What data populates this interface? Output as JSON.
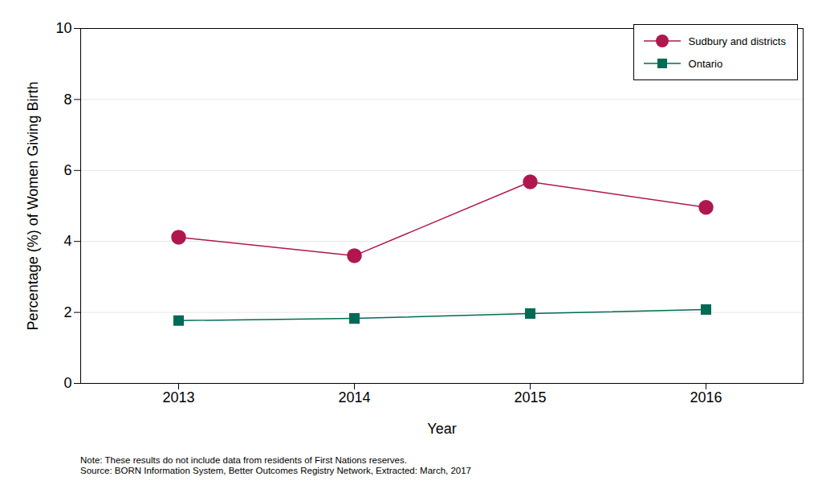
{
  "chart_data": {
    "type": "line",
    "x_label": "Year",
    "y_label": "Percentage (%) of Women Giving Birth",
    "categories": [
      "2013",
      "2014",
      "2015",
      "2016"
    ],
    "series": [
      {
        "name": "Sudbury and districts",
        "color": "#b0174f",
        "marker": "circle",
        "values": [
          4.12,
          3.6,
          5.68,
          4.96
        ]
      },
      {
        "name": "Ontario",
        "color": "#006b55",
        "marker": "square",
        "values": [
          1.77,
          1.83,
          1.97,
          2.08
        ]
      }
    ],
    "ylim": [
      0,
      10
    ],
    "yticks": [
      0,
      2,
      4,
      6,
      8,
      10
    ],
    "grid": true,
    "legend": "top-right",
    "notes": [
      "Note: These results do not include data from residents of First Nations reserves.",
      "Source: BORN Information System, Better Outcomes Registry Network, Extracted: March, 2017"
    ]
  }
}
